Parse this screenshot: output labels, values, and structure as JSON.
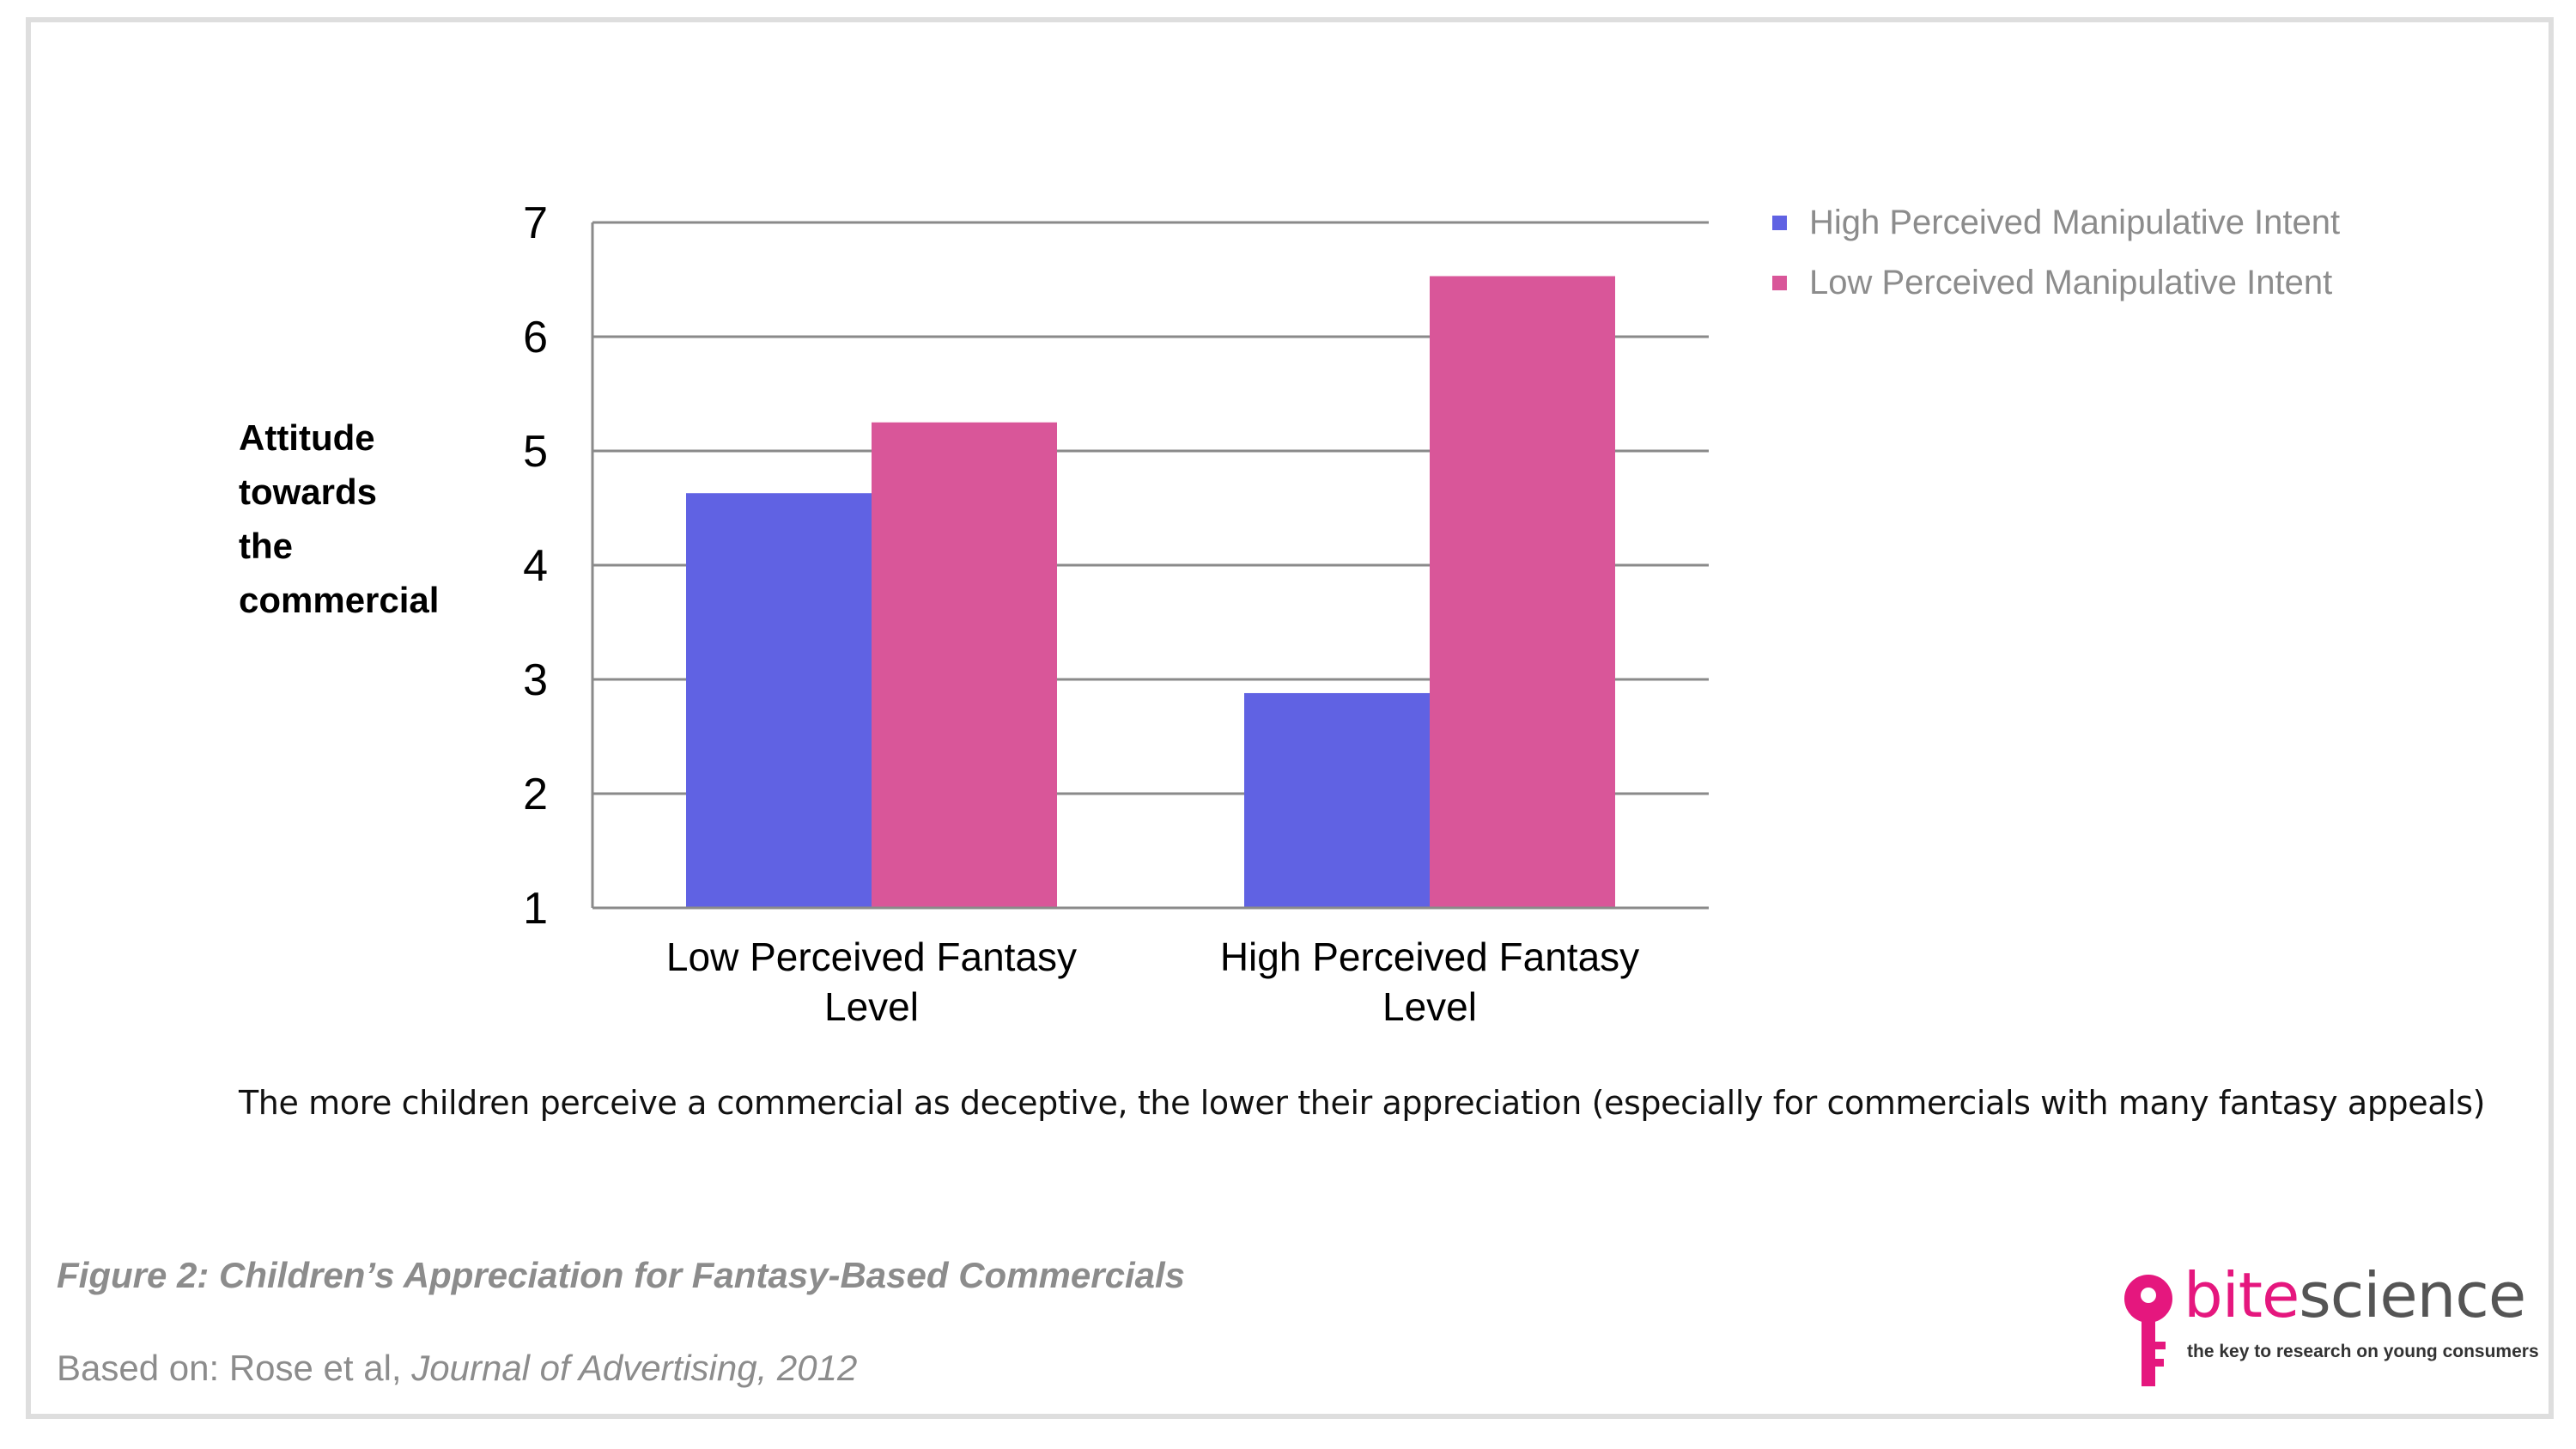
{
  "chart_data": {
    "type": "bar",
    "categories": [
      "Low Perceived Fantasy Level",
      "High Perceived Fantasy Level"
    ],
    "category_lines": [
      [
        "Low Perceived Fantasy",
        "Level"
      ],
      [
        "High Perceived Fantasy",
        "Level"
      ]
    ],
    "series": [
      {
        "name": "High Perceived Manipulative Intent",
        "values": [
          4.63,
          2.88
        ],
        "color": "#6062e3"
      },
      {
        "name": "Low Perceived Manipulative Intent",
        "values": [
          5.25,
          6.53
        ],
        "color": "#d95699"
      }
    ],
    "ylabel_lines": [
      "Attitude",
      "towards",
      "the",
      "commercial"
    ],
    "ylim": [
      1,
      7
    ],
    "yticks": [
      1,
      2,
      3,
      4,
      5,
      6,
      7
    ],
    "grid": true,
    "legend_position": "top-right"
  },
  "takeaway": "The more children perceive a commercial as deceptive, the lower their appreciation (especially for commercials with many fantasy appeals)",
  "figure_caption": "Figure 2: Children’s Appreciation for Fantasy-Based Commercials",
  "source": {
    "prefix": "Based on: Rose et al, ",
    "journal": "Journal of Advertising, 2012"
  },
  "logo": {
    "name_part1": "bite",
    "name_part2": "science",
    "tagline": "the key to research on young consumers",
    "brand_color": "#e5177e"
  }
}
